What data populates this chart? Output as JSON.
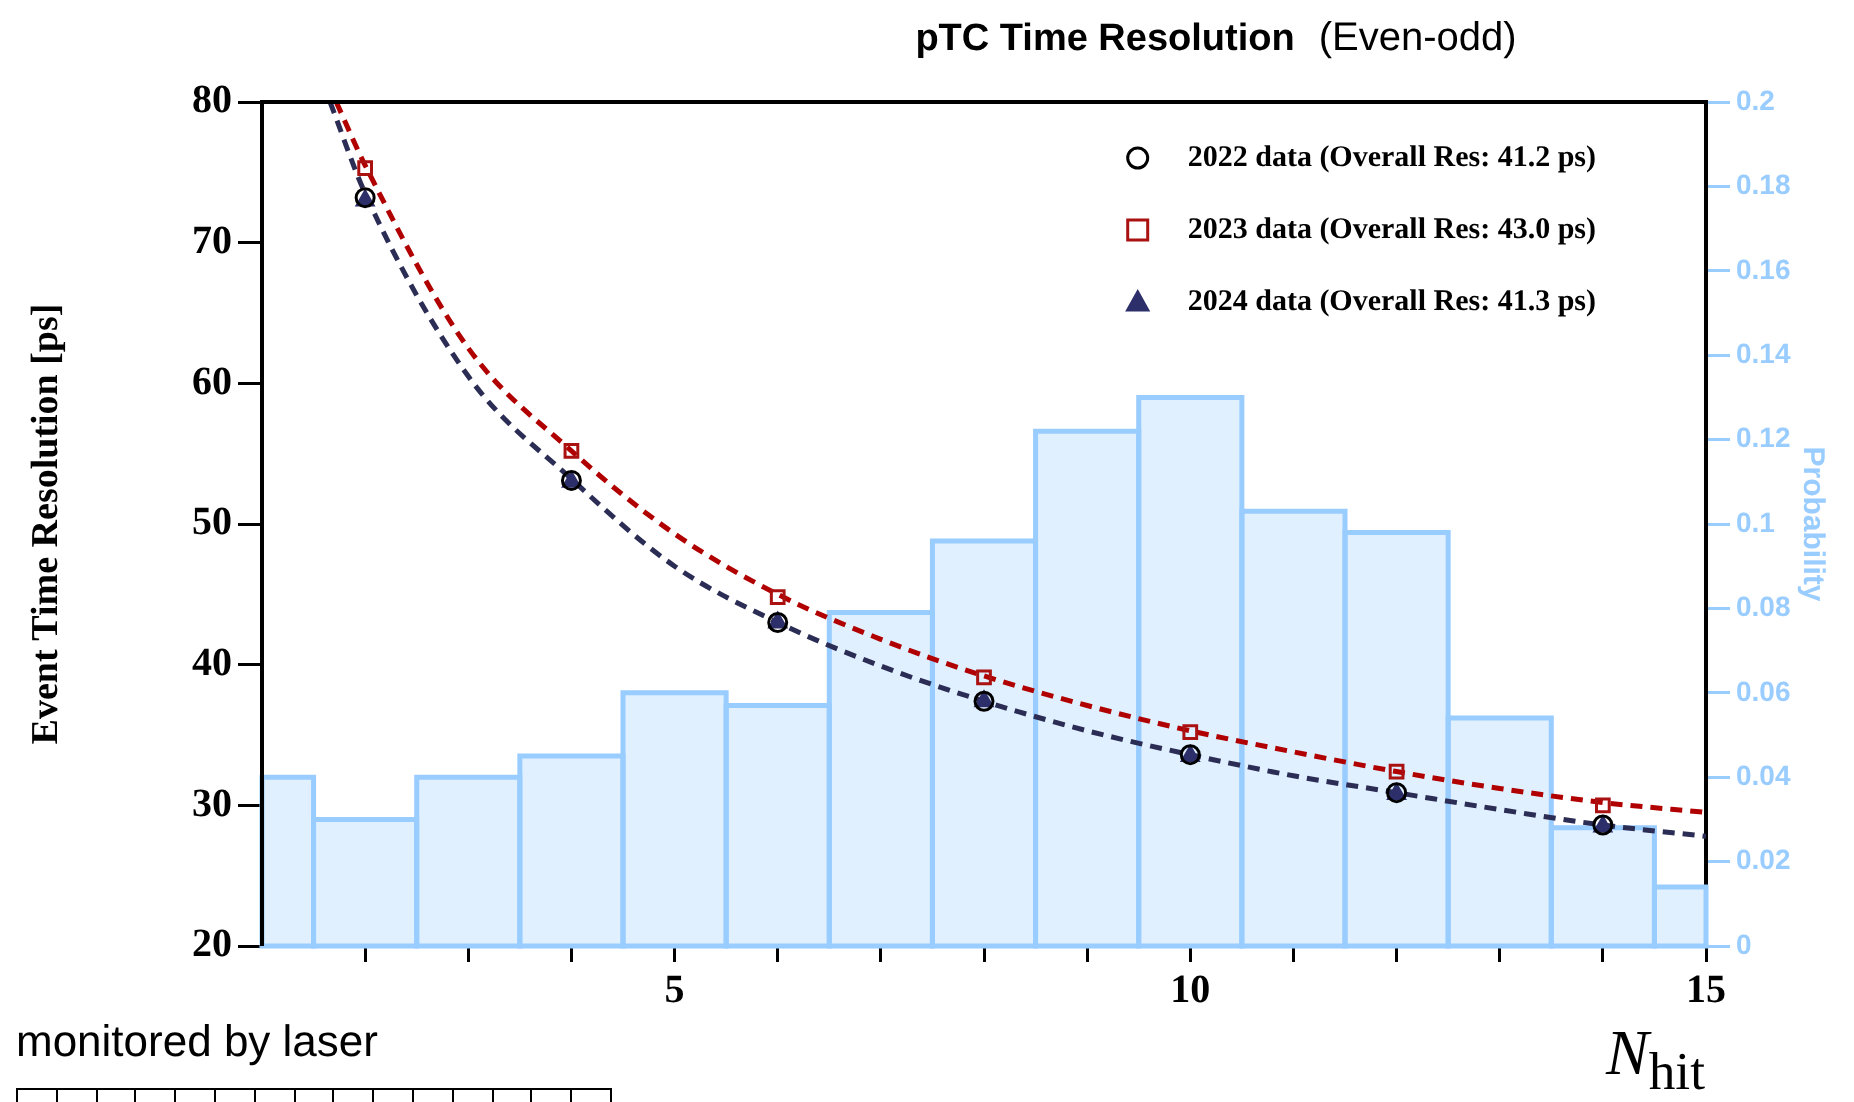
{
  "chart_data": {
    "type": "scatter",
    "title": "pTC Time Resolution",
    "subtitle": "(Even-odd)",
    "xlabel": "N$_{hit}$",
    "ylabel": "Event Time Resolution [ps]",
    "y2label": "Probability",
    "annotations": [
      "monitored by laser"
    ],
    "xlim": [
      1,
      15
    ],
    "xticks": [
      {
        "value": 2,
        "label": null
      },
      {
        "value": 3,
        "label": null
      },
      {
        "value": 4,
        "label": null
      },
      5,
      {
        "value": 6,
        "label": null
      },
      {
        "value": 7,
        "label": null
      },
      {
        "value": 8,
        "label": null
      },
      {
        "value": 9,
        "label": null
      },
      10,
      {
        "value": 11,
        "label": null
      },
      {
        "value": 12,
        "label": null
      },
      {
        "value": 13,
        "label": null
      },
      {
        "value": 14,
        "label": null
      },
      15
    ],
    "ylim": [
      20,
      80
    ],
    "yticks": [
      20,
      30,
      40,
      50,
      60,
      70,
      80
    ],
    "y2lim": [
      0,
      0.2
    ],
    "y2ticks": [
      0,
      0.02,
      0.04,
      0.06,
      0.08,
      0.1,
      0.12,
      0.14,
      0.16,
      0.18,
      0.2
    ],
    "legend": "top right",
    "grid": false,
    "series": [
      {
        "type": "histogram",
        "axis": "y2",
        "color": "#99ccff",
        "bins": [
          1,
          1.5,
          2.5,
          3.5,
          4.5,
          5.5,
          6.5,
          7.5,
          8.5,
          9.5,
          10.5,
          11.5,
          12.5,
          13.5,
          14.5,
          15
        ],
        "values": [
          0.04,
          0.03,
          0.04,
          0.045,
          0.06,
          0.057,
          0.079,
          0.096,
          0.122,
          0.13,
          0.103,
          0.098,
          0.054,
          0.028,
          0.014
        ]
      },
      {
        "type": "line",
        "line_style": "dashed",
        "color": "#b00000",
        "x": [
          1.72,
          2,
          3,
          4,
          5,
          6,
          7,
          8,
          9,
          10,
          11,
          12,
          13,
          14,
          15
        ],
        "values": [
          80,
          75.5,
          62.5,
          55.2,
          49.3,
          45,
          41.8,
          39.2,
          37.1,
          35.3,
          33.8,
          32.4,
          31.2,
          30.2,
          29.5
        ]
      },
      {
        "type": "line",
        "line_style": "dashed",
        "color": "#2b2d55",
        "x": [
          1.66,
          2,
          3,
          4,
          5,
          6,
          7,
          8,
          9,
          10,
          11,
          12,
          13,
          14,
          15
        ],
        "values": [
          80,
          73.5,
          60.5,
          53.2,
          47,
          43,
          39.9,
          37.4,
          35.3,
          33.6,
          32.1,
          30.9,
          29.7,
          28.6,
          27.8
        ]
      },
      {
        "name": "2022 data (Overall Res: 41.2 ps)",
        "marker": "circle",
        "color": "#000000",
        "x": [
          2,
          4,
          6,
          8,
          10,
          12,
          14
        ],
        "values": [
          73.2,
          53.1,
          43,
          37.4,
          33.6,
          30.9,
          28.6
        ]
      },
      {
        "name": "2023 data (Overall Res: 43.0 ps)",
        "marker": "square",
        "color": "#aa1111",
        "x": [
          2,
          4,
          6,
          8,
          10,
          12,
          14
        ],
        "values": [
          75.3,
          55.2,
          44.8,
          39.1,
          35.2,
          32.4,
          30
        ]
      },
      {
        "name": "2024 data (Overall Res: 41.3 ps)",
        "marker": "triangle",
        "color": "#2d2f6b",
        "x": [
          2,
          4,
          6,
          8,
          10,
          12,
          14
        ],
        "values": [
          73,
          53,
          43,
          37.4,
          33.5,
          30.8,
          28.5
        ]
      }
    ]
  }
}
